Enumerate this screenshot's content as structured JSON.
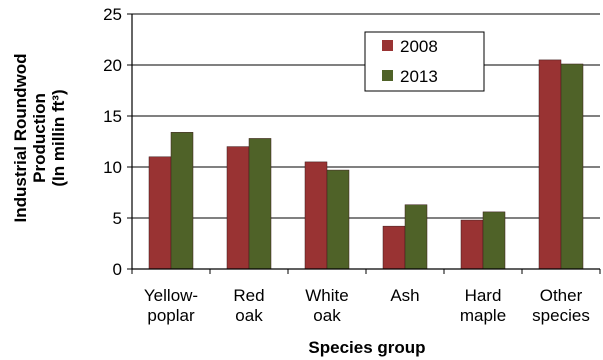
{
  "chart_data": {
    "type": "bar",
    "title": "",
    "xlabel": "Species group",
    "ylabel_lines": [
      "Industrial Roundwod",
      "Production",
      "(In millin ft³)"
    ],
    "categories": [
      [
        "Yellow-",
        "poplar"
      ],
      [
        "Red",
        "oak"
      ],
      [
        "White",
        "oak"
      ],
      [
        "Ash"
      ],
      [
        "Hard",
        "maple"
      ],
      [
        "Other",
        "species"
      ]
    ],
    "series": [
      {
        "name": "2008",
        "color": "#993333",
        "values": [
          11.0,
          12.0,
          10.5,
          4.2,
          4.8,
          20.5
        ]
      },
      {
        "name": "2013",
        "color": "#4f6228",
        "values": [
          13.4,
          12.8,
          9.7,
          6.3,
          5.6,
          20.1
        ]
      }
    ],
    "yticks": [
      "0",
      "5",
      "10",
      "15",
      "20",
      "25"
    ],
    "ylim": [
      0,
      25
    ],
    "grid": "horizontal",
    "legend": "top-right"
  }
}
